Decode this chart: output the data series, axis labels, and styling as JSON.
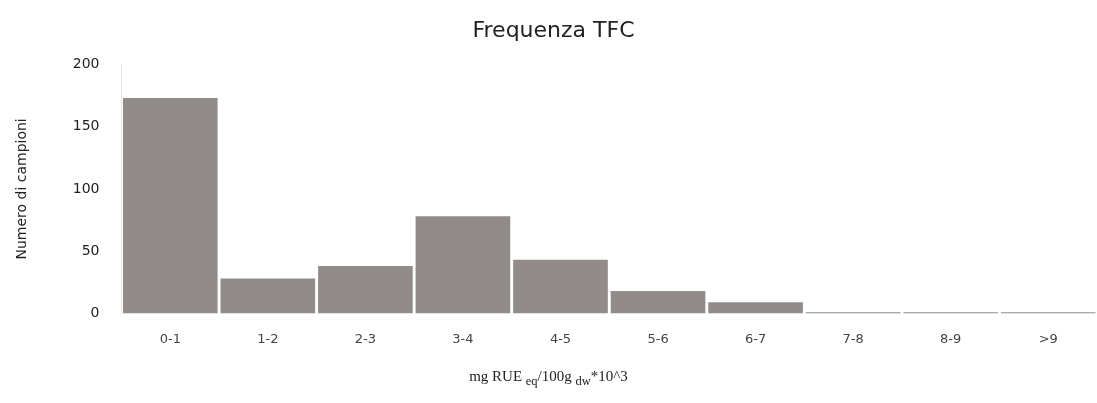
{
  "chart_data": {
    "type": "bar",
    "title": "Frequenza TFC",
    "xlabel": "mg RUE $_{eq}$/100g $_{dw}$*10^3",
    "ylabel": "Numero di campioni",
    "categories": [
      "0-1",
      "1-2",
      "2-3",
      "3-4",
      "4-5",
      "5-6",
      "6-7",
      "7-8",
      "8-9",
      ">9"
    ],
    "values": [
      173,
      28,
      38,
      78,
      43,
      18,
      9,
      1,
      1,
      1
    ],
    "color": "#918b89",
    "ylim": [
      0,
      200
    ],
    "yticks": [
      0,
      50,
      100,
      150,
      200
    ],
    "grid": false
  }
}
